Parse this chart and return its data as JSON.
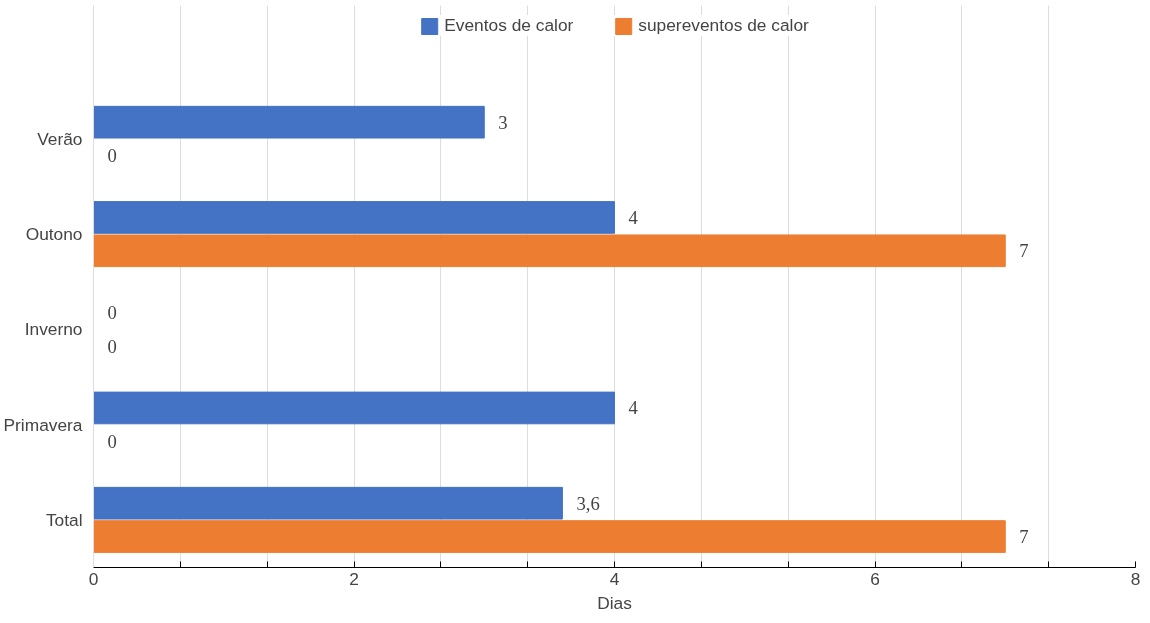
{
  "chart_data": {
    "type": "bar",
    "orientation": "horizontal",
    "xlabel": "Dias",
    "categories": [
      "Verão",
      "Outono",
      "Inverno",
      "Primavera",
      "Total"
    ],
    "series": [
      {
        "name": "Eventos de calor",
        "color": "#4472c4",
        "values": [
          3,
          4,
          0,
          4,
          3.6
        ],
        "value_labels": [
          "3",
          "4",
          "0",
          "4",
          "3,6"
        ]
      },
      {
        "name": "supereventos de calor",
        "color": "#ed7d31",
        "values": [
          0,
          7,
          0,
          0,
          7
        ],
        "value_labels": [
          "0",
          "7",
          "0",
          "0",
          "7"
        ]
      }
    ],
    "xlim": [
      0,
      8
    ],
    "xticks": [
      0,
      {
        "value": 0.667,
        "label": null
      },
      {
        "value": 1.333,
        "label": null
      },
      2,
      {
        "value": 2.667,
        "label": null
      },
      {
        "value": 3.333,
        "label": null
      },
      4,
      {
        "value": 4.667,
        "label": null
      },
      {
        "value": 5.333,
        "label": null
      },
      6,
      {
        "value": 6.667,
        "label": null
      },
      {
        "value": 7.333,
        "label": null
      },
      8
    ],
    "grid": "x",
    "legend": "top"
  }
}
